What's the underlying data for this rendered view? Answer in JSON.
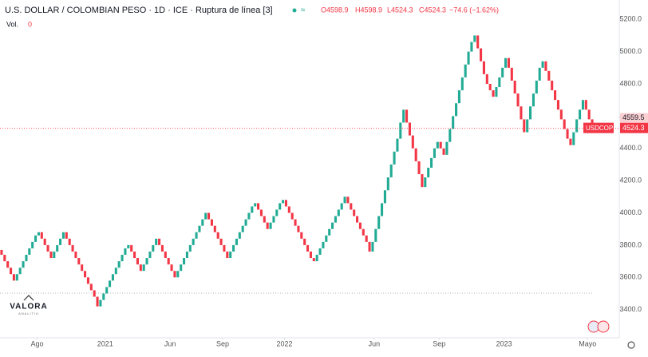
{
  "chart_data": {
    "type": "line-break",
    "title": "U.S. DOLLAR / COLOMBIAN PESO · 1D · ICE · Ruptura de línea [3]",
    "ohlc": [
      "O4598.9",
      "H4598.9",
      "L4524.3",
      "C4524.3",
      "−74.6 (−1.62%)"
    ],
    "volume_label": "Vol.",
    "volume_value": "0",
    "symbol": "USDCOP",
    "last_price_label": "4524.3",
    "price_label_high": "4559.5",
    "logo": [
      "VALORA",
      "ANALITIK"
    ],
    "up_color": "#22ab94",
    "down_color": "#f23645",
    "values": [
      3770,
      3740,
      3700,
      3660,
      3620,
      3580,
      3620,
      3660,
      3700,
      3740,
      3780,
      3820,
      3860,
      3880,
      3840,
      3800,
      3760,
      3720,
      3760,
      3800,
      3840,
      3880,
      3840,
      3800,
      3760,
      3720,
      3680,
      3640,
      3600,
      3560,
      3520,
      3480,
      3420,
      3460,
      3500,
      3540,
      3580,
      3620,
      3660,
      3700,
      3740,
      3780,
      3800,
      3760,
      3720,
      3680,
      3640,
      3680,
      3720,
      3760,
      3800,
      3840,
      3800,
      3760,
      3720,
      3680,
      3640,
      3600,
      3640,
      3680,
      3720,
      3760,
      3800,
      3840,
      3880,
      3920,
      3960,
      4000,
      3960,
      3920,
      3880,
      3840,
      3800,
      3760,
      3720,
      3760,
      3800,
      3840,
      3880,
      3920,
      3960,
      4000,
      4040,
      4060,
      4020,
      3980,
      3940,
      3900,
      3940,
      3980,
      4020,
      4060,
      4080,
      4040,
      4000,
      3960,
      3920,
      3880,
      3840,
      3800,
      3760,
      3720,
      3700,
      3740,
      3780,
      3820,
      3860,
      3900,
      3940,
      3980,
      4020,
      4060,
      4100,
      4060,
      4020,
      3980,
      3940,
      3900,
      3860,
      3820,
      3760,
      3820,
      3900,
      3980,
      4060,
      4140,
      4220,
      4300,
      4380,
      4460,
      4560,
      4640,
      4560,
      4480,
      4400,
      4320,
      4240,
      4160,
      4220,
      4280,
      4340,
      4400,
      4440,
      4400,
      4360,
      4440,
      4520,
      4600,
      4680,
      4760,
      4840,
      4920,
      5000,
      5060,
      5100,
      5020,
      4940,
      4860,
      4800,
      4760,
      4720,
      4780,
      4840,
      4900,
      4960,
      4900,
      4820,
      4740,
      4660,
      4580,
      4500,
      4580,
      4660,
      4740,
      4820,
      4900,
      4940,
      4880,
      4820,
      4760,
      4700,
      4640,
      4580,
      4520,
      4460,
      4420,
      4500,
      4580,
      4640,
      4700,
      4640,
      4580,
      4524.3
    ],
    "xlim": [
      0,
      200
    ],
    "xticks": [
      {
        "value": 12,
        "label": "Ago"
      },
      {
        "value": 34,
        "label": "2021"
      },
      {
        "value": 55,
        "label": "Jun"
      },
      {
        "value": 72,
        "label": "Sep"
      },
      {
        "value": 92,
        "label": "2022"
      },
      {
        "value": 121,
        "label": "Jun"
      },
      {
        "value": 142,
        "label": "Sep"
      },
      {
        "value": 163,
        "label": "2023"
      },
      {
        "value": 190,
        "label": "Mayo"
      }
    ],
    "ylim": [
      3230,
      5320
    ],
    "yticks": [
      {
        "value": 3400,
        "label": "3400.0"
      },
      {
        "value": 3600,
        "label": "3600.0"
      },
      {
        "value": 3800,
        "label": "3800.0"
      },
      {
        "value": 4000,
        "label": "4000.0"
      },
      {
        "value": 4200,
        "label": "4200.0"
      },
      {
        "value": 4400,
        "label": "4400.0"
      },
      {
        "value": 4600,
        "label": "4600.0"
      },
      {
        "value": 4800,
        "label": "4800.0"
      },
      {
        "value": 5000,
        "label": "5000.0"
      },
      {
        "value": 5200,
        "label": "5200.0"
      }
    ]
  }
}
